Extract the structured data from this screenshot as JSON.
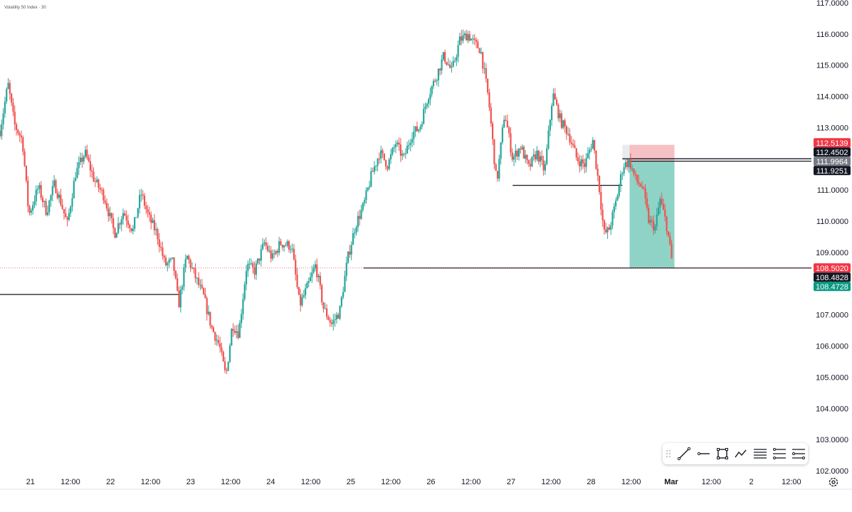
{
  "header": {
    "symbol": "Volatility 50 Index",
    "interval": "30"
  },
  "colors": {
    "up": "#26a69a",
    "down": "#ef5350",
    "ask_tag": "#f23645",
    "bid_tag": "#089981",
    "black_tag": "#131722",
    "gray_tag": "#787b86",
    "profit_zone": "#8fd3c6",
    "stop_zone": "#f5c1c4"
  },
  "toolbar": {
    "tools": [
      "drag-handle-icon",
      "trend-line-icon",
      "horizontal-ray-icon",
      "rectangle-icon",
      "path-icon",
      "horizontal-lines-icon",
      "parallel-channel-icon",
      "fib-retracement-icon"
    ]
  },
  "chart_data": {
    "type": "candlestick",
    "title": "Volatility 50 Index",
    "interval": "30",
    "ylim": [
      102.0,
      117.0
    ],
    "y_ticks": [
      "102.0000",
      "103.0000",
      "104.0000",
      "105.0000",
      "106.0000",
      "107.0000",
      "108.0000",
      "109.0000",
      "110.0000",
      "111.0000",
      "112.0000",
      "113.0000",
      "114.0000",
      "115.0000",
      "116.0000",
      "117.0000"
    ],
    "x_ticks": [
      "21",
      "12:00",
      "22",
      "12:00",
      "23",
      "12:00",
      "24",
      "12:00",
      "25",
      "12:00",
      "26",
      "12:00",
      "27",
      "12:00",
      "28",
      "12:00",
      "Mar",
      "12:00",
      "2",
      "12:00"
    ],
    "x_tick_days": [
      0.5,
      1.0,
      1.5,
      2.0,
      2.5,
      3.0,
      3.5,
      4.0,
      4.5,
      5.0,
      5.5,
      6.0,
      6.5,
      7.0,
      7.5,
      8.0,
      8.5,
      9.0,
      9.5,
      10.0
    ],
    "x_range_days": [
      0.12,
      10.25
    ],
    "price_path": [
      [
        0.12,
        112.9
      ],
      [
        0.22,
        114.4
      ],
      [
        0.3,
        113.1
      ],
      [
        0.4,
        112.6
      ],
      [
        0.48,
        110.2
      ],
      [
        0.6,
        111.1
      ],
      [
        0.7,
        110.3
      ],
      [
        0.8,
        111.2
      ],
      [
        0.88,
        110.6
      ],
      [
        0.96,
        109.9
      ],
      [
        1.06,
        111.5
      ],
      [
        1.18,
        112.2
      ],
      [
        1.3,
        111.3
      ],
      [
        1.42,
        110.8
      ],
      [
        1.55,
        109.6
      ],
      [
        1.66,
        110.3
      ],
      [
        1.78,
        109.7
      ],
      [
        1.88,
        110.9
      ],
      [
        1.98,
        110.1
      ],
      [
        2.08,
        109.6
      ],
      [
        2.18,
        108.6
      ],
      [
        2.28,
        108.7
      ],
      [
        2.35,
        107.3
      ],
      [
        2.45,
        108.9
      ],
      [
        2.56,
        108.2
      ],
      [
        2.66,
        107.6
      ],
      [
        2.76,
        106.6
      ],
      [
        2.86,
        106.0
      ],
      [
        2.94,
        105.0
      ],
      [
        3.02,
        106.7
      ],
      [
        3.1,
        106.4
      ],
      [
        3.2,
        108.6
      ],
      [
        3.3,
        108.4
      ],
      [
        3.42,
        109.3
      ],
      [
        3.52,
        108.8
      ],
      [
        3.62,
        109.3
      ],
      [
        3.76,
        109.2
      ],
      [
        3.86,
        107.3
      ],
      [
        3.96,
        107.9
      ],
      [
        4.06,
        108.6
      ],
      [
        4.16,
        107.2
      ],
      [
        4.26,
        106.7
      ],
      [
        4.36,
        107.1
      ],
      [
        4.46,
        108.8
      ],
      [
        4.56,
        109.9
      ],
      [
        4.66,
        110.5
      ],
      [
        4.76,
        111.5
      ],
      [
        4.86,
        112.2
      ],
      [
        4.96,
        111.8
      ],
      [
        5.06,
        112.5
      ],
      [
        5.16,
        112.0
      ],
      [
        5.26,
        112.8
      ],
      [
        5.36,
        113.0
      ],
      [
        5.46,
        114.0
      ],
      [
        5.56,
        114.6
      ],
      [
        5.66,
        115.3
      ],
      [
        5.76,
        114.8
      ],
      [
        5.86,
        115.8
      ],
      [
        5.96,
        116.0
      ],
      [
        6.04,
        115.7
      ],
      [
        6.12,
        115.5
      ],
      [
        6.22,
        113.9
      ],
      [
        6.32,
        111.2
      ],
      [
        6.42,
        113.5
      ],
      [
        6.52,
        112.0
      ],
      [
        6.62,
        112.4
      ],
      [
        6.72,
        111.7
      ],
      [
        6.82,
        112.2
      ],
      [
        6.92,
        111.6
      ],
      [
        7.02,
        114.1
      ],
      [
        7.12,
        113.2
      ],
      [
        7.22,
        112.8
      ],
      [
        7.32,
        112.0
      ],
      [
        7.42,
        111.8
      ],
      [
        7.52,
        112.6
      ],
      [
        7.6,
        111.1
      ],
      [
        7.66,
        109.6
      ],
      [
        7.72,
        109.7
      ],
      [
        7.8,
        110.5
      ],
      [
        7.9,
        111.8
      ],
      [
        7.98,
        111.9
      ],
      [
        8.06,
        111.3
      ],
      [
        8.14,
        111.1
      ],
      [
        8.22,
        110.0
      ],
      [
        8.3,
        109.8
      ],
      [
        8.36,
        110.7
      ],
      [
        8.44,
        109.9
      ],
      [
        8.52,
        108.5
      ]
    ],
    "levels": [
      {
        "price": 107.65,
        "x_from": 0.12,
        "x_to": 2.35
      },
      {
        "price": 111.15,
        "x_from": 6.52,
        "x_to": 7.89
      },
      {
        "price": 112.0,
        "x_from": 7.89,
        "x_to": 10.25
      },
      {
        "price": 111.925,
        "x_from": 7.95,
        "x_to": 10.25
      },
      {
        "price": 108.5,
        "x_from": 4.66,
        "x_to": 10.25
      }
    ],
    "short_position": {
      "x_from": 7.98,
      "x_to": 8.54,
      "entry": 111.925,
      "stop": 112.45,
      "target": 108.5,
      "stop_box_x_from": 7.89
    },
    "price_labels": [
      {
        "value": "112.5139",
        "price": 112.5139,
        "style": "ask_tag"
      },
      {
        "value": "112.4502",
        "price": 112.4502,
        "style": "black_tag"
      },
      {
        "value": "111.9964",
        "price": 111.9964,
        "style": "gray_tag"
      },
      {
        "value": "111.9251",
        "price": 111.9251,
        "style": "black_tag"
      },
      {
        "value": "108.5020",
        "price": 108.502,
        "style": "ask_tag"
      },
      {
        "value": "108.4828",
        "price": 108.4828,
        "style": "black_tag"
      },
      {
        "value": "108.4728",
        "price": 108.4728,
        "style": "bid_tag"
      }
    ],
    "last_price": 108.502
  }
}
